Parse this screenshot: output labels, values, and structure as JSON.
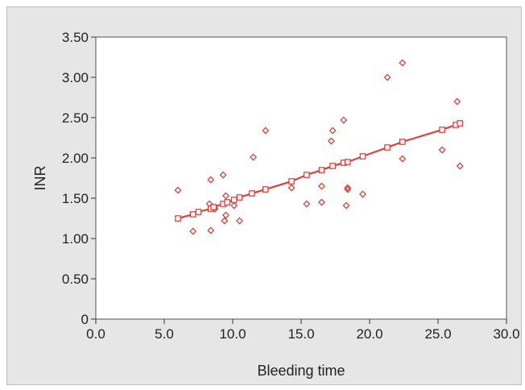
{
  "chart_data": {
    "type": "scatter",
    "xlabel": "Bleeding time",
    "ylabel": "INR",
    "xlim": [
      0,
      30
    ],
    "ylim": [
      0,
      3.5
    ],
    "x_ticks": [
      "0.0",
      "5.0",
      "10.0",
      "15.0",
      "20.0",
      "25.0",
      "30.0"
    ],
    "y_ticks": [
      "0",
      "0.50",
      "1.00",
      "1.50",
      "2.00",
      "2.50",
      "3.00",
      "3.50"
    ],
    "grid": false,
    "colors": {
      "marker": "#e8332a",
      "fit_line": "#e8332a",
      "background": "#e6e6e6",
      "plot_area": "#ffffff"
    },
    "series": [
      {
        "marker": "diamond",
        "points": [
          [
            6.0,
            1.6
          ],
          [
            7.1,
            1.09
          ],
          [
            8.3,
            1.43
          ],
          [
            8.4,
            1.73
          ],
          [
            8.4,
            1.1
          ],
          [
            8.7,
            1.37
          ],
          [
            9.3,
            1.79
          ],
          [
            9.4,
            1.22
          ],
          [
            9.5,
            1.53
          ],
          [
            9.5,
            1.29
          ],
          [
            10.1,
            1.41
          ],
          [
            10.5,
            1.22
          ],
          [
            11.5,
            2.01
          ],
          [
            12.4,
            2.34
          ],
          [
            14.3,
            1.63
          ],
          [
            15.4,
            1.43
          ],
          [
            16.5,
            1.65
          ],
          [
            16.5,
            1.45
          ],
          [
            17.2,
            2.21
          ],
          [
            17.3,
            2.34
          ],
          [
            18.1,
            2.47
          ],
          [
            18.3,
            1.41
          ],
          [
            18.4,
            1.61
          ],
          [
            18.4,
            1.63
          ],
          [
            19.5,
            1.55
          ],
          [
            21.3,
            3.0
          ],
          [
            22.4,
            3.18
          ],
          [
            22.4,
            1.99
          ],
          [
            25.3,
            2.1
          ],
          [
            26.4,
            2.7
          ],
          [
            26.6,
            1.9
          ]
        ]
      },
      {
        "marker": "square",
        "line": true,
        "points": [
          [
            6.0,
            1.25
          ],
          [
            7.1,
            1.3
          ],
          [
            7.5,
            1.33
          ],
          [
            8.4,
            1.37
          ],
          [
            8.6,
            1.39
          ],
          [
            9.3,
            1.43
          ],
          [
            9.6,
            1.45
          ],
          [
            10.1,
            1.48
          ],
          [
            10.5,
            1.51
          ],
          [
            11.4,
            1.56
          ],
          [
            12.4,
            1.61
          ],
          [
            14.3,
            1.71
          ],
          [
            15.4,
            1.79
          ],
          [
            16.5,
            1.85
          ],
          [
            17.3,
            1.9
          ],
          [
            18.1,
            1.94
          ],
          [
            18.4,
            1.95
          ],
          [
            19.5,
            2.02
          ],
          [
            21.3,
            2.13
          ],
          [
            22.4,
            2.2
          ],
          [
            25.3,
            2.35
          ],
          [
            26.3,
            2.41
          ],
          [
            26.6,
            2.43
          ]
        ]
      }
    ]
  }
}
